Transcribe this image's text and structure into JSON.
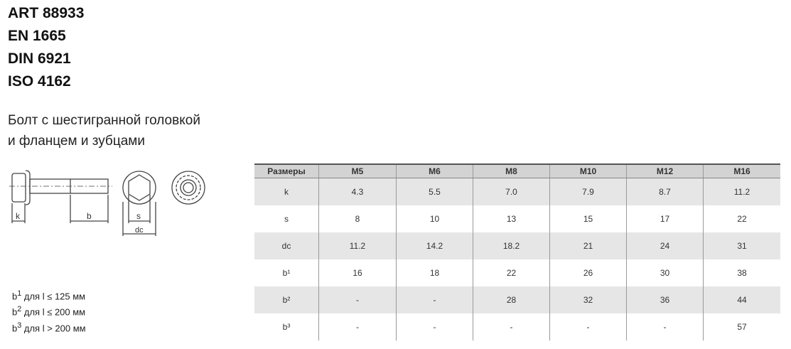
{
  "standards": [
    "ART 88933",
    "EN 1665",
    "DIN 6921",
    "ISO 4162"
  ],
  "description": [
    "Болт с шестигранной головкой",
    "и фланцем и зубцами"
  ],
  "drawing_labels": {
    "k": "k",
    "b": "b",
    "s": "s",
    "dc": "dc"
  },
  "notes": [
    {
      "sup": "1",
      "text": " для l ≤ 125 мм"
    },
    {
      "sup": "2",
      "text": " для l ≤ 200 мм"
    },
    {
      "sup": "3",
      "text": " для l > 200 мм"
    }
  ],
  "table": {
    "headers": [
      "Размеры",
      "M5",
      "M6",
      "M8",
      "M10",
      "M12",
      "M16"
    ],
    "rows": [
      {
        "label": "k",
        "values": [
          "4.3",
          "5.5",
          "7.0",
          "7.9",
          "8.7",
          "11.2"
        ]
      },
      {
        "label": "s",
        "values": [
          "8",
          "10",
          "13",
          "15",
          "17",
          "22"
        ]
      },
      {
        "label": "dc",
        "values": [
          "11.2",
          "14.2",
          "18.2",
          "21",
          "24",
          "31"
        ]
      },
      {
        "label": "b¹",
        "values": [
          "16",
          "18",
          "22",
          "26",
          "30",
          "38"
        ]
      },
      {
        "label": "b²",
        "values": [
          "-",
          "-",
          "28",
          "32",
          "36",
          "44"
        ]
      },
      {
        "label": "b³",
        "values": [
          "-",
          "-",
          "-",
          "-",
          "-",
          "57"
        ]
      }
    ]
  }
}
